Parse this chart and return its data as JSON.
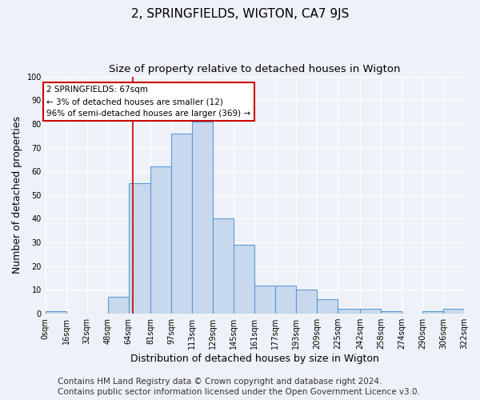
{
  "title": "2, SPRINGFIELDS, WIGTON, CA7 9JS",
  "subtitle": "Size of property relative to detached houses in Wigton",
  "xlabel": "Distribution of detached houses by size in Wigton",
  "ylabel": "Number of detached properties",
  "footer_line1": "Contains HM Land Registry data © Crown copyright and database right 2024.",
  "footer_line2": "Contains public sector information licensed under the Open Government Licence v3.0.",
  "bin_edges": [
    0,
    16,
    32,
    48,
    64,
    81,
    97,
    113,
    129,
    145,
    161,
    177,
    193,
    209,
    225,
    242,
    258,
    274,
    290,
    306,
    322
  ],
  "bin_labels": [
    "0sqm",
    "16sqm",
    "32sqm",
    "48sqm",
    "64sqm",
    "81sqm",
    "97sqm",
    "113sqm",
    "129sqm",
    "145sqm",
    "161sqm",
    "177sqm",
    "193sqm",
    "209sqm",
    "225sqm",
    "242sqm",
    "258sqm",
    "274sqm",
    "290sqm",
    "306sqm",
    "322sqm"
  ],
  "bar_heights": [
    1,
    0,
    0,
    7,
    55,
    62,
    76,
    81,
    40,
    29,
    12,
    12,
    10,
    6,
    2,
    2,
    1,
    0,
    1,
    2
  ],
  "bar_fill_color": "#c9d9ed",
  "bar_edge_color": "#5b9bd5",
  "property_line_x": 67,
  "property_line_color": "#cc0000",
  "annot_line1": "2 SPRINGFIELDS: 67sqm",
  "annot_line2": "← 3% of detached houses are smaller (12)",
  "annot_line3": "96% of semi-detached houses are larger (369) →",
  "annot_box_color": "#cc0000",
  "annot_bg_color": "white",
  "ylim": [
    0,
    100
  ],
  "xlim": [
    0,
    322
  ],
  "yticks": [
    0,
    10,
    20,
    30,
    40,
    50,
    60,
    70,
    80,
    90,
    100
  ],
  "background_color": "#eef2f8",
  "grid_color": "#ffffff",
  "title_fontsize": 11,
  "subtitle_fontsize": 9.5,
  "axis_label_fontsize": 9,
  "tick_fontsize": 7,
  "footer_fontsize": 7.5
}
